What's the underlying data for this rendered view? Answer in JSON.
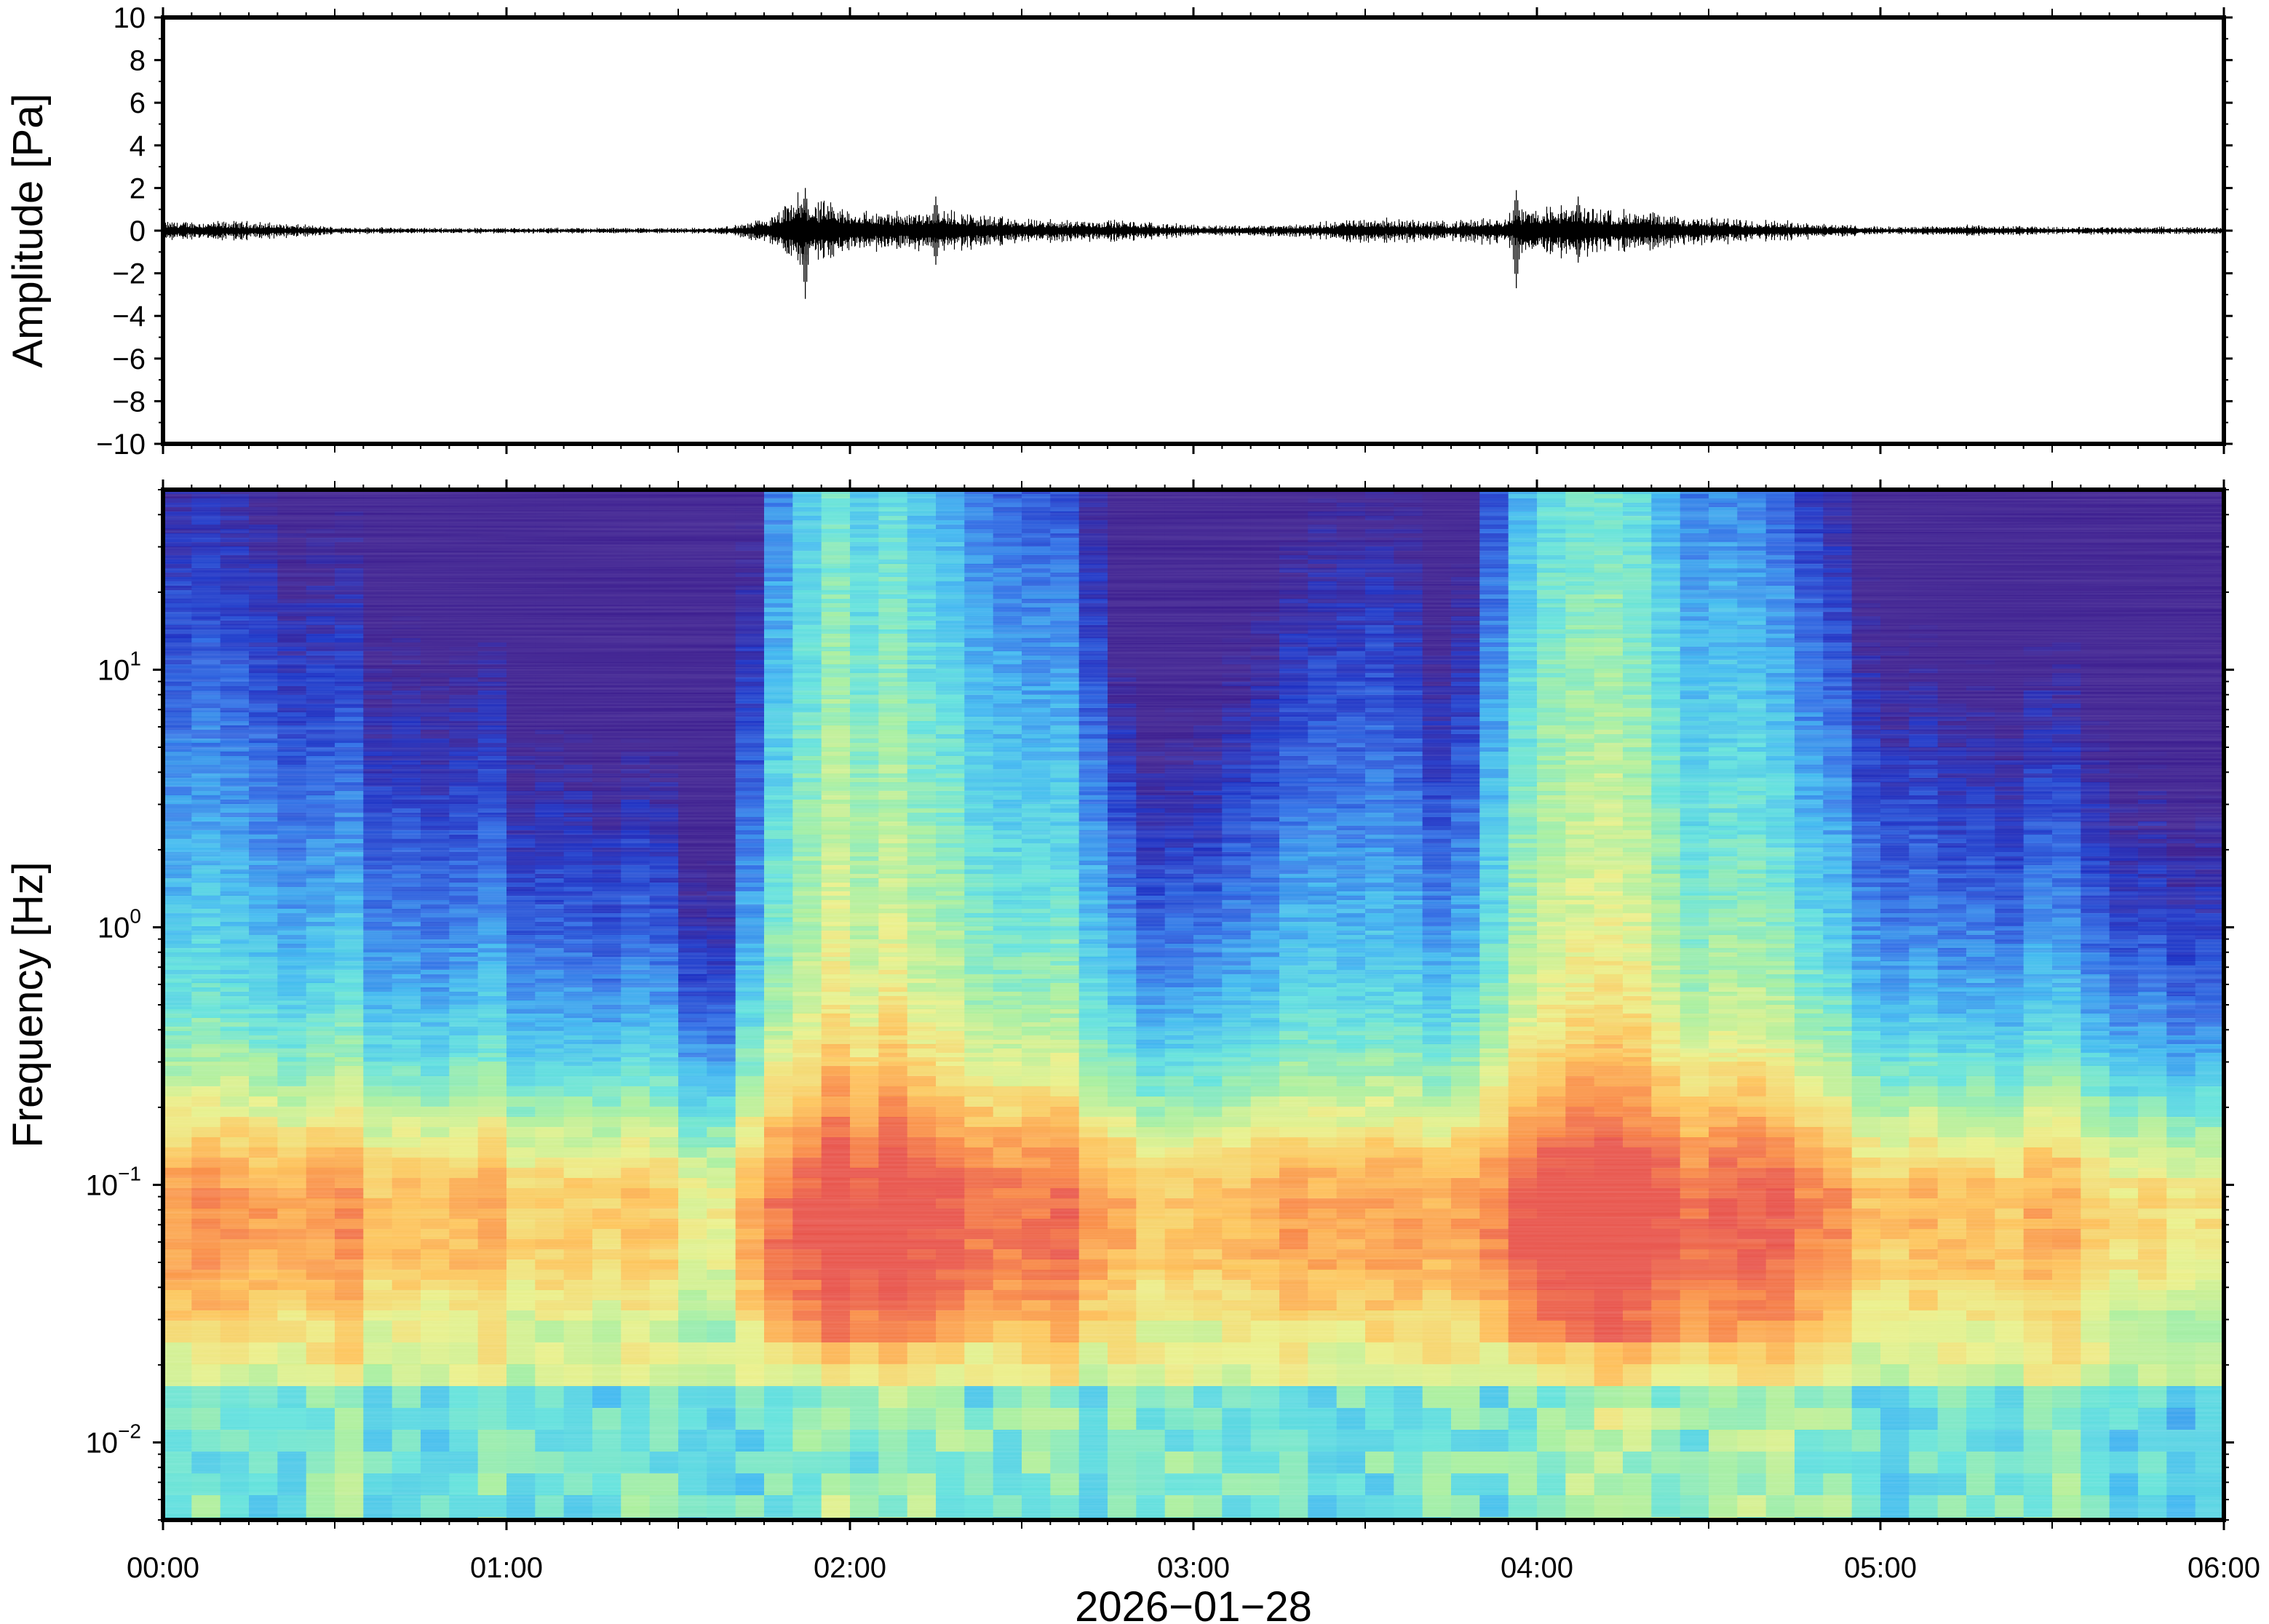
{
  "chart_data": [
    {
      "type": "line",
      "panel": "waveform",
      "ylabel": "Amplitude [Pa]",
      "ylim": [
        -10,
        10
      ],
      "yticks": [
        -10,
        -8,
        -6,
        -4,
        -2,
        0,
        2,
        4,
        6,
        8,
        10
      ],
      "ytick_labels": [
        "−10",
        "−8",
        "−6",
        "−4",
        "−2",
        "0",
        "2",
        "4",
        "6",
        "8",
        "10"
      ],
      "x_range_hours": [
        0,
        6
      ],
      "envelope": {
        "x_hours": [
          0.0,
          0.25,
          0.5,
          0.75,
          1.0,
          1.25,
          1.5,
          1.6,
          1.7,
          1.78,
          1.85,
          1.9,
          2.0,
          2.1,
          2.25,
          2.5,
          2.75,
          3.0,
          3.25,
          3.35,
          3.5,
          3.75,
          3.9,
          3.95,
          4.1,
          4.25,
          4.5,
          4.75,
          5.0,
          5.25,
          5.5,
          5.75,
          6.0
        ],
        "amplitude": [
          0.5,
          0.5,
          0.2,
          0.15,
          0.15,
          0.15,
          0.15,
          0.15,
          0.4,
          0.8,
          2.0,
          1.6,
          1.2,
          1.0,
          1.2,
          0.6,
          0.6,
          0.3,
          0.3,
          0.4,
          0.7,
          0.5,
          0.8,
          1.2,
          1.4,
          1.1,
          0.7,
          0.5,
          0.2,
          0.3,
          0.2,
          0.2,
          0.2
        ]
      },
      "peaks": [
        {
          "x_hours": 1.87,
          "min": -3.2,
          "max": 2.0
        },
        {
          "x_hours": 2.25,
          "min": -1.6,
          "max": 1.6
        },
        {
          "x_hours": 3.94,
          "min": -2.7,
          "max": 1.9
        },
        {
          "x_hours": 4.12,
          "min": -1.5,
          "max": 1.6
        }
      ],
      "grid": false
    },
    {
      "type": "heatmap",
      "panel": "spectrogram",
      "ylabel": "Frequency [Hz]",
      "yscale": "log",
      "ylim": [
        0.005,
        50
      ],
      "yticks": [
        0.01,
        0.1,
        1,
        10
      ],
      "ytick_labels": [
        {
          "base": "10",
          "exp": "−2"
        },
        {
          "base": "10",
          "exp": "−1"
        },
        {
          "base": "10",
          "exp": "0"
        },
        {
          "base": "10",
          "exp": "1"
        }
      ],
      "xlabel": "2026−01−28",
      "x_range_hours": [
        0,
        6
      ],
      "xticks_hours": [
        0,
        1,
        2,
        3,
        4,
        5,
        6
      ],
      "xtick_labels": [
        "00:00",
        "01:00",
        "02:00",
        "03:00",
        "04:00",
        "05:00",
        "06:00"
      ],
      "colormap": [
        "#3b1d8f",
        "#1a2fc4",
        "#2f6fe6",
        "#3fb8f0",
        "#62e2dc",
        "#a8ef9e",
        "#eaf08a",
        "#fdc45a",
        "#f98a45",
        "#e8534a"
      ],
      "activity_hours": [
        0.0,
        0.25,
        0.5,
        0.75,
        1.0,
        1.25,
        1.5,
        1.6,
        1.65,
        1.75,
        1.9,
        2.1,
        2.3,
        2.5,
        2.75,
        2.8,
        3.0,
        3.25,
        3.4,
        3.6,
        3.75,
        3.9,
        4.1,
        4.3,
        4.5,
        4.75,
        5.0,
        5.25,
        5.5,
        5.75,
        6.0
      ],
      "activity_level": [
        0.6,
        0.55,
        0.45,
        0.4,
        0.35,
        0.3,
        0.25,
        0.15,
        0.2,
        0.7,
        0.85,
        0.8,
        0.75,
        0.65,
        0.55,
        0.3,
        0.3,
        0.45,
        0.55,
        0.55,
        0.3,
        0.75,
        0.85,
        0.8,
        0.7,
        0.6,
        0.45,
        0.35,
        0.35,
        0.3,
        0.25
      ],
      "grid": false
    }
  ]
}
